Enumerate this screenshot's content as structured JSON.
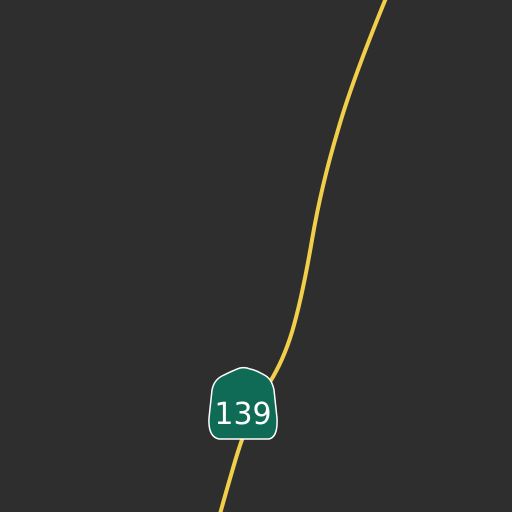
{
  "map": {
    "background_color": "#2e2e2e",
    "roads": [
      {
        "kind": "highway",
        "color": "#f2cf4a",
        "route_number": "139"
      }
    ],
    "shields": [
      {
        "icon": "california-state-route-shield-icon",
        "label": "139",
        "fill_color": "#0f6b55",
        "text_color": "#ffffff"
      }
    ]
  }
}
